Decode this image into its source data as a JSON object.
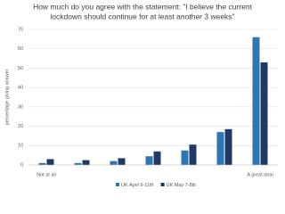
{
  "chart_data": {
    "type": "bar",
    "title": [
      "How much do you agree with the statement: \"I believe the current",
      "lockdown should continue for at least another 3 weeks\""
    ],
    "y_label": "percentage giving answer",
    "categories": [
      "Not at all",
      null,
      null,
      null,
      null,
      null,
      "A great deal"
    ],
    "series": [
      {
        "name": "UK April 9-11th",
        "color": "#2e75b6",
        "values": [
          1,
          1,
          2,
          4.5,
          7.5,
          17,
          66
        ]
      },
      {
        "name": "UK May 7-8th",
        "color": "#1f3864",
        "values": [
          3,
          2.5,
          3.5,
          7,
          10.5,
          18.5,
          53
        ]
      }
    ],
    "ylim": [
      0,
      70
    ],
    "yticks": [
      0,
      10,
      20,
      30,
      40,
      50,
      60,
      70
    ],
    "grid": true,
    "legend": "bottom"
  }
}
